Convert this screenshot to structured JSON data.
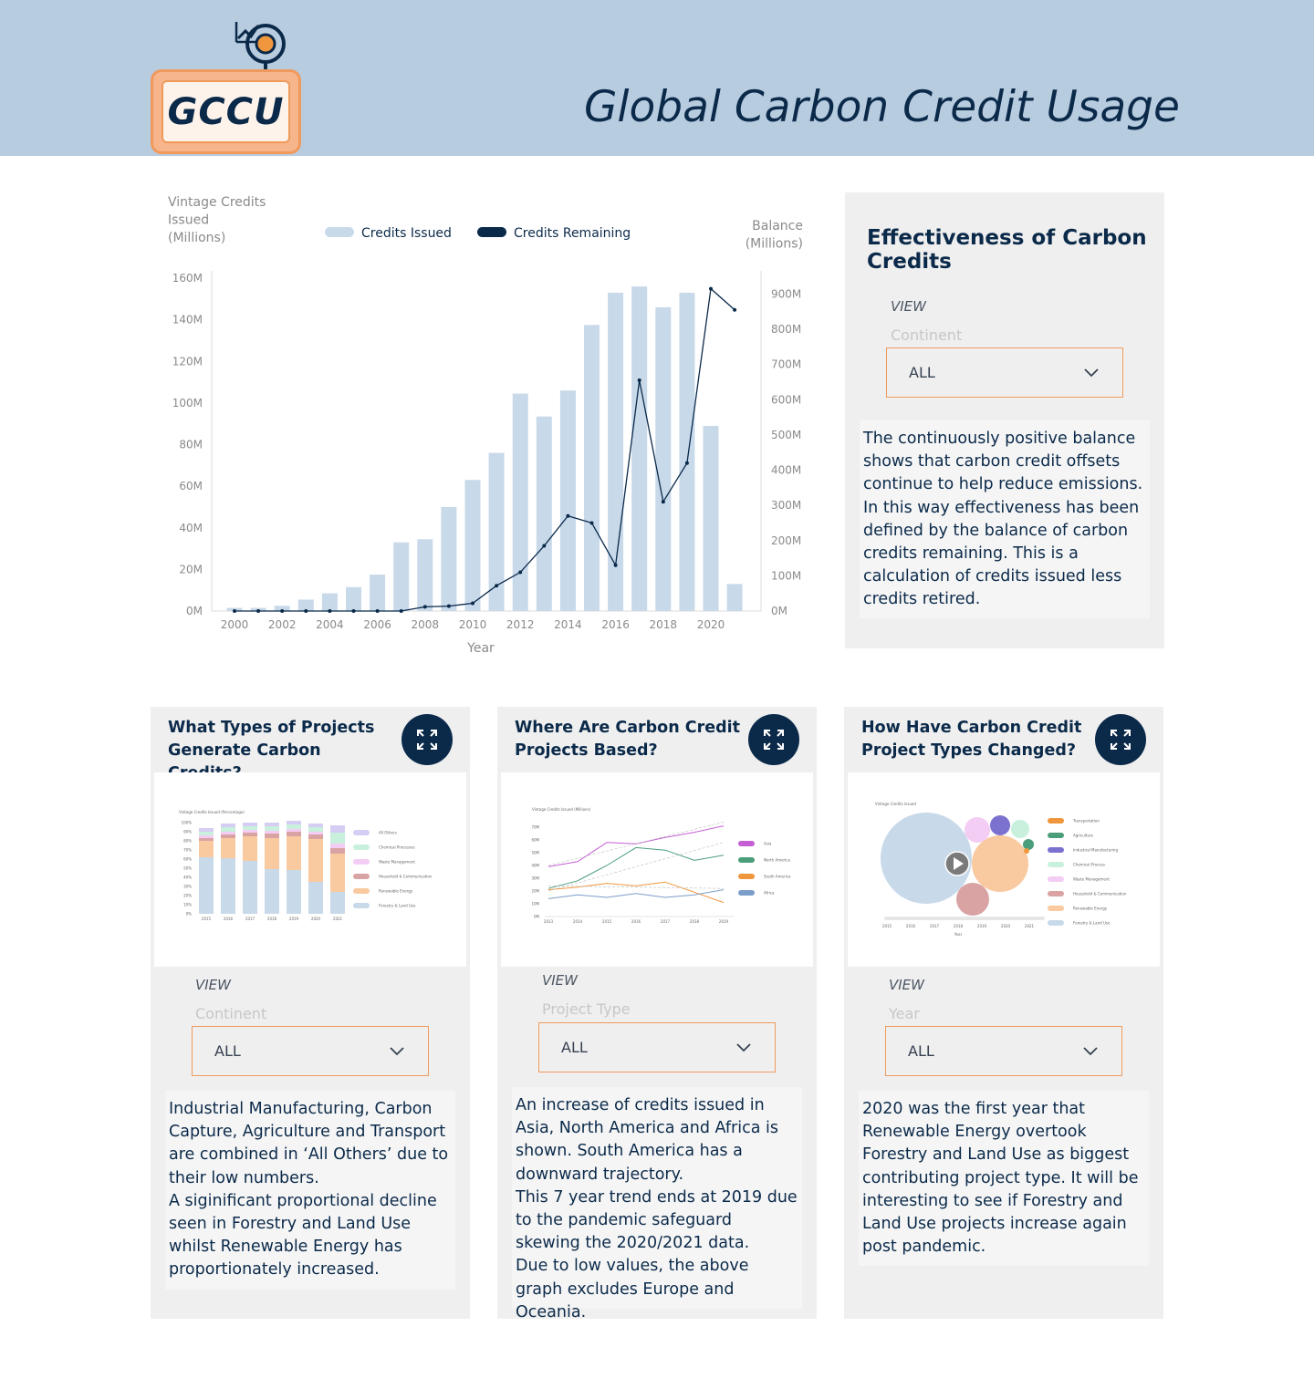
{
  "header": {
    "logo_text": "GCCU",
    "title": "Global Carbon Credit Usage"
  },
  "chart_data": [
    {
      "type": "bar+line",
      "title": "",
      "y_left_label_lines": [
        "Vintage Credits",
        "Issued",
        "(Millions)"
      ],
      "y_right_label_lines": [
        "Balance",
        "(Millions)"
      ],
      "xlabel": "Year",
      "legend": [
        "Credits Issued",
        "Credits Remaining"
      ],
      "legend_placement": "top",
      "y_left_ticks": [
        "0M",
        "20M",
        "40M",
        "60M",
        "80M",
        "100M",
        "120M",
        "140M",
        "160M"
      ],
      "y_left_lim": [
        0,
        160
      ],
      "y_right_ticks": [
        "0M",
        "100M",
        "200M",
        "300M",
        "400M",
        "500M",
        "600M",
        "700M",
        "800M",
        "900M"
      ],
      "y_right_lim": [
        0,
        945
      ],
      "x_ticks": [
        "2000",
        "2002",
        "2004",
        "2006",
        "2008",
        "2010",
        "2012",
        "2014",
        "2016",
        "2018",
        "2020"
      ],
      "categories": [
        2000,
        2001,
        2002,
        2003,
        2004,
        2005,
        2006,
        2007,
        2008,
        2009,
        2010,
        2011,
        2012,
        2013,
        2014,
        2015,
        2016,
        2017,
        2018,
        2019,
        2020,
        2021
      ],
      "series": [
        {
          "name": "Credits Issued",
          "kind": "bar",
          "color": "#c8d9ea",
          "values": [
            1.5,
            1.5,
            2.5,
            5.5,
            8.5,
            11.5,
            17.5,
            33,
            34.5,
            50,
            63,
            76,
            104.5,
            93.5,
            106,
            137.5,
            153,
            156,
            146,
            153,
            89,
            13
          ]
        },
        {
          "name": "Credits Remaining",
          "kind": "line",
          "color": "#0b2a4a",
          "values": [
            0,
            0,
            0,
            0,
            0,
            0,
            0,
            0,
            12,
            14,
            22,
            72,
            110,
            185,
            270,
            250,
            130,
            655,
            310,
            420,
            915,
            855
          ]
        }
      ]
    }
  ],
  "effectiveness": {
    "title": "Effectiveness of Carbon Credits",
    "view_label": "VIEW",
    "filter_label": "Continent",
    "select_value": "ALL",
    "description": "The continuously positive balance shows that carbon credit offsets continue to help reduce emissions. In this way effectiveness has been defined by the balance of carbon credits remaining. This is a calculation of credits issued less credits retired."
  },
  "cards": [
    {
      "title": "What Types of Projects Generate Carbon Credits?",
      "view_label": "VIEW",
      "filter_label": "Continent",
      "select_value": "ALL",
      "description": "Industrial Manufacturing, Carbon Capture, Agriculture and Transport are combined in ‘All Others’ due to their low numbers.\nA siginificant proportional decline seen in Forestry and Land Use whilst Renewable Energy has proportionately increased.",
      "thumb_ylabel": "Vintage Credits Issued (Percentage)",
      "thumb_legend": [
        "All Others",
        "Chemical Processes",
        "Waste Management",
        "Household & Communication",
        "Renewable Energy",
        "Forestry & Land Use"
      ],
      "thumb_colors": [
        "#d5cdf3",
        "#c8f0dc",
        "#f3cdf3",
        "#d9a3a3",
        "#f9c9a0",
        "#c8d9ea"
      ],
      "thumb_x": [
        "2015",
        "2016",
        "2017",
        "2018",
        "2019",
        "2020",
        "2021"
      ],
      "thumb_y": [
        "0%",
        "10%",
        "20%",
        "30%",
        "40%",
        "50%",
        "60%",
        "70%",
        "80%",
        "90%",
        "100%"
      ]
    },
    {
      "title": "Where Are Carbon Credit Projects Based?",
      "view_label": "VIEW",
      "filter_label": "Project Type",
      "select_value": "ALL",
      "description": "An increase of credits issued in Asia, North America and Africa is shown. South America has a downward trajectory.\nThis 7 year trend ends at 2019 due to the pandemic safeguard skewing the 2020/2021 data.\nDue to low values, the above graph excludes Europe and Oceania.",
      "thumb_ylabel": "Vintage Credits Issued (Millions)",
      "thumb_legend": [
        "Asia",
        "North America",
        "South America",
        "Africa"
      ],
      "thumb_colors": [
        "#c45fd4",
        "#4a9e7a",
        "#f0963c",
        "#7b9ec8"
      ],
      "thumb_x": [
        "2013",
        "2014",
        "2015",
        "2016",
        "2017",
        "2018",
        "2019"
      ],
      "thumb_y": [
        "0M",
        "10M",
        "20M",
        "30M",
        "40M",
        "50M",
        "60M",
        "70M"
      ]
    },
    {
      "title": "How Have Carbon Credit Project Types Changed?",
      "view_label": "VIEW",
      "filter_label": "Year",
      "select_value": "ALL",
      "description": "2020 was the first year that Renewable Energy overtook Forestry and Land Use as biggest contributing project type. It will be interesting to see if Forestry and Land Use projects increase again post pandemic.",
      "thumb_ylabel": "Vintage Credits Issued",
      "thumb_legend": [
        "Transportation",
        "Agriculture",
        "Industrial Manufacturing",
        "Chemical Process",
        "Waste Management",
        "Household & Communication",
        "Renewable Energy",
        "Forestry & Land Use"
      ],
      "thumb_colors": [
        "#f0963c",
        "#4a9e7a",
        "#7b72d0",
        "#c8f0dc",
        "#f3cdf3",
        "#d9a3a3",
        "#f9c9a0",
        "#c8d9ea"
      ],
      "thumb_x": [
        "2015",
        "2016",
        "2017",
        "2018",
        "2019",
        "2020",
        "2021"
      ],
      "thumb_axis": "Year"
    }
  ]
}
